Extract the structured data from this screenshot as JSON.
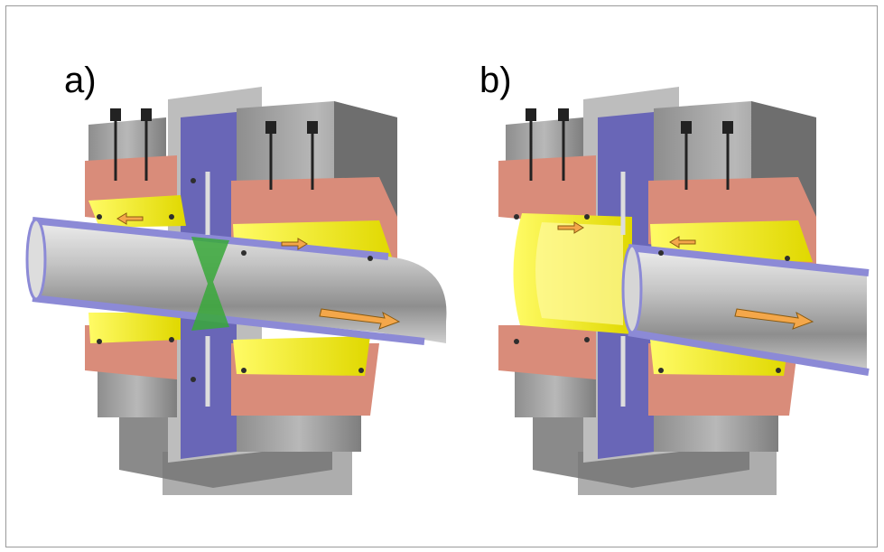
{
  "panels": [
    {
      "label": "a)",
      "state": "closed",
      "neck": "green"
    },
    {
      "label": "b)",
      "state": "open",
      "liner": "yellow"
    }
  ],
  "colors": {
    "background": "#ffffff",
    "frame_border": "#9a9a9a",
    "housing_gray": "#a7a7a7",
    "center_plate": "#b4b4b4",
    "blue_plate": "#5a57b6",
    "copper": "#d98c7a",
    "yellow_seal": "#f4f000",
    "green_neck": "#38a83a",
    "pipe_steel": "#b9b9b9",
    "pipe_edge": "#8c8ad6",
    "arrow_orange": "#f4a74a"
  },
  "icons": [
    "flow-arrow",
    "sensor-probe",
    "bolt"
  ]
}
